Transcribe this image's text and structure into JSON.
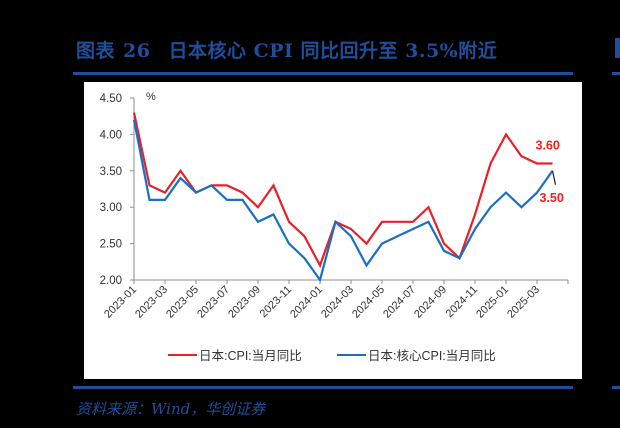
{
  "header": {
    "figure_label": "图表",
    "figure_number": "26",
    "title": "日本核心 CPI 同比回升至 3.5%附近"
  },
  "footer": {
    "source": "资料来源：Wind，华创证券"
  },
  "colors": {
    "brand": "#1f4e9a",
    "cpi": "#e8202a",
    "core_cpi": "#1a6fc4",
    "label_red": "#ff1a1a"
  },
  "chart_data": {
    "type": "line",
    "title": "",
    "xlabel": "",
    "ylabel": "%",
    "ylim": [
      2.0,
      4.5
    ],
    "yticks": [
      "2.00",
      "2.50",
      "3.00",
      "3.50",
      "4.00",
      "4.50"
    ],
    "grid": false,
    "legend_position": "bottom",
    "x": [
      "2023-01",
      "2023-02",
      "2023-03",
      "2023-04",
      "2023-05",
      "2023-06",
      "2023-07",
      "2023-08",
      "2023-09",
      "2023-10",
      "2023-11",
      "2023-12",
      "2024-01",
      "2024-02",
      "2024-03",
      "2024-04",
      "2024-05",
      "2024-06",
      "2024-07",
      "2024-08",
      "2024-09",
      "2024-10",
      "2024-11",
      "2024-12",
      "2025-01",
      "2025-02",
      "2025-03",
      "2025-04"
    ],
    "xtick_labels": [
      "2023-01",
      "2023-03",
      "2023-05",
      "2023-07",
      "2023-09",
      "2023-11",
      "2024-01",
      "2024-03",
      "2024-05",
      "2024-07",
      "2024-09",
      "2024-11",
      "2025-01",
      "2025-03"
    ],
    "series": [
      {
        "name": "日本:CPI:当月同比",
        "color": "#e8202a",
        "values": [
          4.3,
          3.3,
          3.2,
          3.5,
          3.2,
          3.3,
          3.3,
          3.2,
          3.0,
          3.3,
          2.8,
          2.6,
          2.2,
          2.8,
          2.7,
          2.5,
          2.8,
          2.8,
          2.8,
          3.0,
          2.5,
          2.3,
          2.9,
          3.6,
          4.0,
          3.7,
          3.6,
          3.6
        ]
      },
      {
        "name": "日本:核心CPI:当月同比",
        "color": "#1a6fc4",
        "values": [
          4.2,
          3.1,
          3.1,
          3.4,
          3.2,
          3.3,
          3.1,
          3.1,
          2.8,
          2.9,
          2.5,
          2.3,
          2.0,
          2.8,
          2.6,
          2.2,
          2.5,
          2.6,
          2.7,
          2.8,
          2.4,
          2.3,
          2.7,
          3.0,
          3.2,
          3.0,
          3.2,
          3.5
        ]
      }
    ],
    "annotations": [
      {
        "text": "3.60",
        "series": "日本:CPI:当月同比",
        "x": "2025-04"
      },
      {
        "text": "3.50",
        "series": "日本:核心CPI:当月同比",
        "x": "2025-04"
      }
    ]
  }
}
